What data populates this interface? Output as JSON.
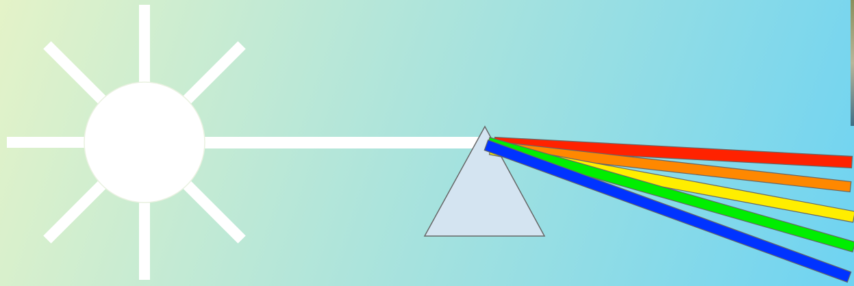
{
  "background": {
    "gradient_start": "#e4f3c8",
    "gradient_end": "#6ed3f2"
  },
  "sun": {
    "color": "#ffffff",
    "outline": "#e9f1e0",
    "ray_count": 8
  },
  "light_beam": {
    "color": "#ffffff"
  },
  "prism": {
    "fill": "#d4e4f1",
    "stroke": "#666666"
  },
  "spectrum": {
    "band_outline": "#666666",
    "bands": [
      {
        "color": "#ff2200"
      },
      {
        "color": "#ff8800"
      },
      {
        "color": "#ffee00"
      },
      {
        "color": "#00ee00"
      },
      {
        "color": "#0033ff"
      }
    ]
  }
}
